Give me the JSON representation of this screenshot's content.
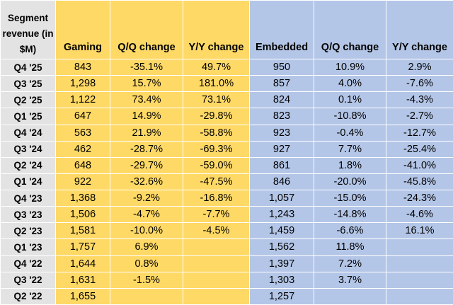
{
  "table": {
    "header": [
      "Segment revenue (in $M)",
      "Gaming",
      "Q/Q change",
      "Y/Y change",
      "Embedded",
      "Q/Q change",
      "Y/Y change"
    ],
    "rows": [
      [
        "Q4 '25",
        "843",
        "-35.1%",
        "49.7%",
        "950",
        "10.9%",
        "2.9%"
      ],
      [
        "Q3 '25",
        "1,298",
        "15.7%",
        "181.0%",
        "857",
        "4.0%",
        "-7.6%"
      ],
      [
        "Q2 '25",
        "1,122",
        "73.4%",
        "73.1%",
        "824",
        "0.1%",
        "-4.3%"
      ],
      [
        "Q1 '25",
        "647",
        "14.9%",
        "-29.8%",
        "823",
        "-10.8%",
        "-2.7%"
      ],
      [
        "Q4 '24",
        "563",
        "21.9%",
        "-58.8%",
        "923",
        "-0.4%",
        "-12.7%"
      ],
      [
        "Q3 '24",
        "462",
        "-28.7%",
        "-69.3%",
        "927",
        "7.7%",
        "-25.4%"
      ],
      [
        "Q2 '24",
        "648",
        "-29.7%",
        "-59.0%",
        "861",
        "1.8%",
        "-41.0%"
      ],
      [
        "Q1 '24",
        "922",
        "-32.6%",
        "-47.5%",
        "846",
        "-20.0%",
        "-45.8%"
      ],
      [
        "Q4 '23",
        "1,368",
        "-9.2%",
        "-16.8%",
        "1,057",
        "-15.0%",
        "-24.3%"
      ],
      [
        "Q3 '23",
        "1,506",
        "-4.7%",
        "-7.7%",
        "1,243",
        "-14.8%",
        "-4.6%"
      ],
      [
        "Q2 '23",
        "1,581",
        "-10.0%",
        "-4.5%",
        "1,459",
        "-6.6%",
        "16.1%"
      ],
      [
        "Q1 '23",
        "1,757",
        "6.9%",
        null,
        "1,562",
        "11.8%",
        null
      ],
      [
        "Q4 '22",
        "1,644",
        "0.8%",
        null,
        "1,397",
        "7.2%",
        null
      ],
      [
        "Q3 '22",
        "1,631",
        "-1.5%",
        null,
        "1,303",
        "3.7%",
        null
      ],
      [
        "Q2 '22",
        "1,655",
        null,
        null,
        "1,257",
        null,
        null
      ]
    ]
  }
}
